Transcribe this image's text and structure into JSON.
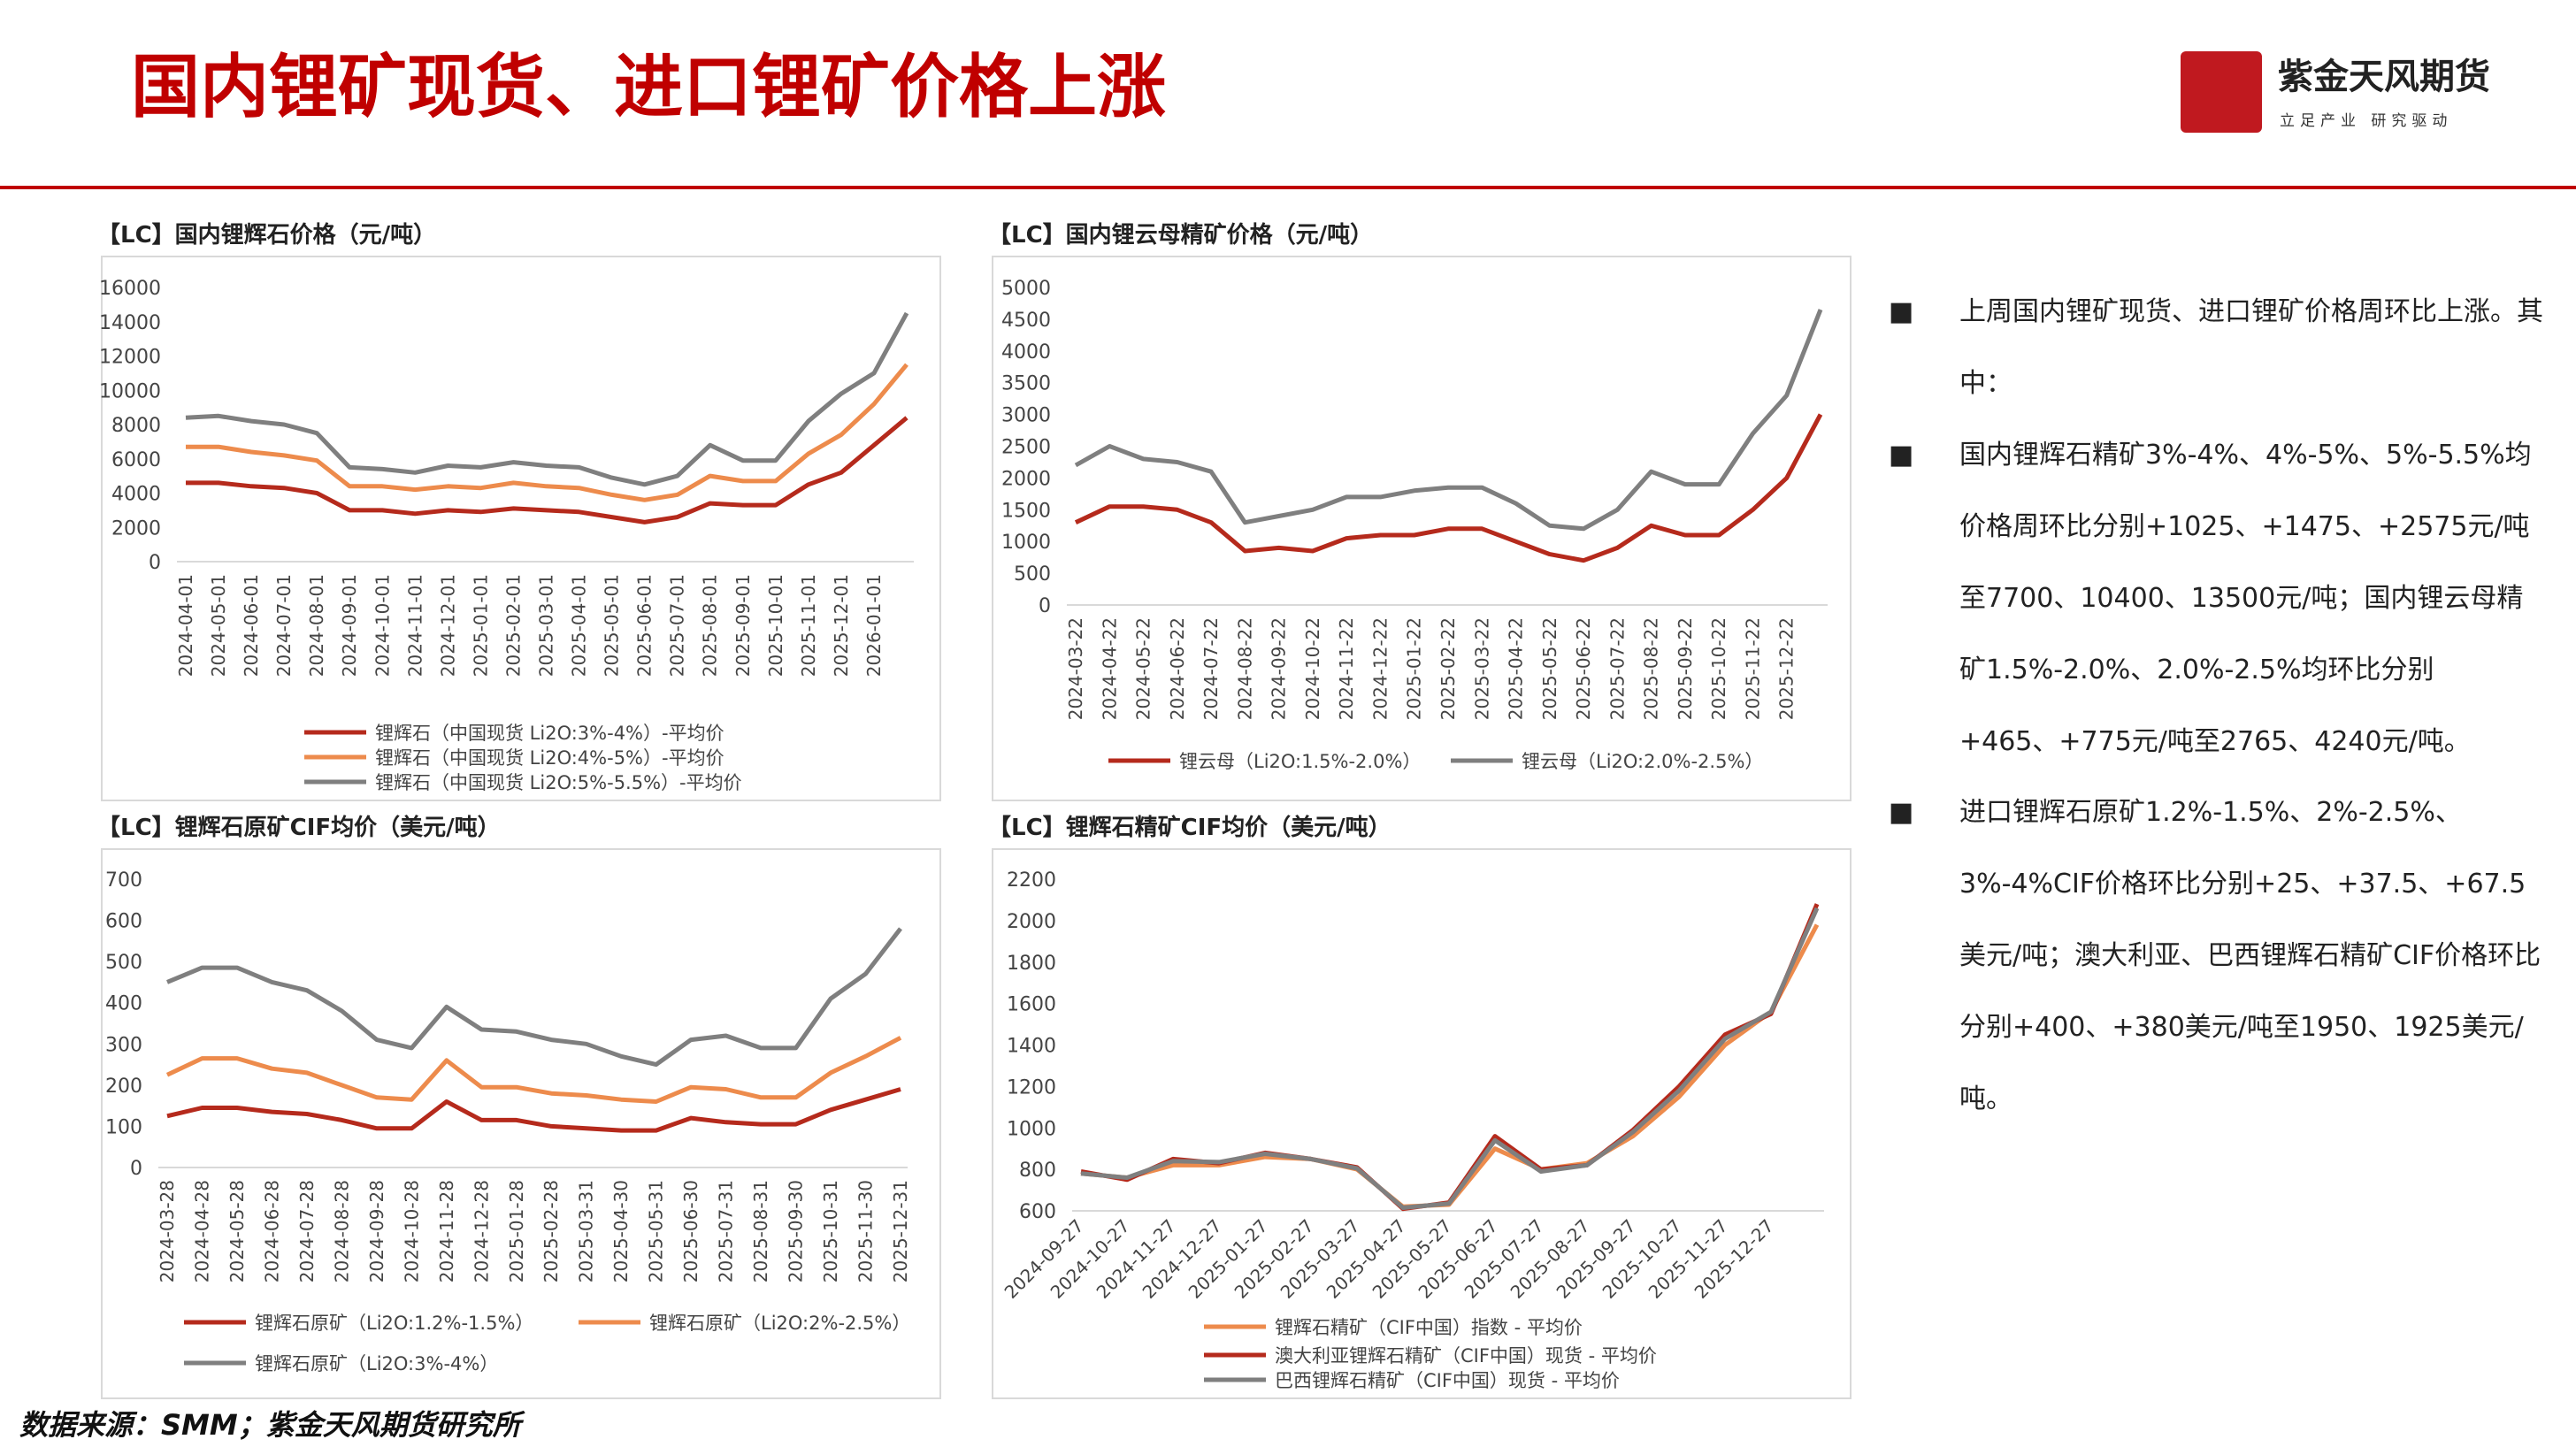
{
  "header": {
    "title": "国内锂矿现货、进口锂矿价格上涨",
    "brand": "紫金天风期货",
    "slogan": "立足产业 研究驱动"
  },
  "chart_data": [
    {
      "type": "line",
      "title": "【LC】国内锂辉石价格（元/吨）",
      "categories": [
        "2024-04-01",
        "2024-05-01",
        "2024-06-01",
        "2024-07-01",
        "2024-08-01",
        "2024-09-01",
        "2024-10-01",
        "2024-11-01",
        "2024-12-01",
        "2025-01-01",
        "2025-02-01",
        "2025-03-01",
        "2025-04-01",
        "2025-05-01",
        "2025-06-01",
        "2025-07-01",
        "2025-08-01",
        "2025-09-01",
        "2025-10-01",
        "2025-11-01",
        "2025-12-01",
        "2026-01-01",
        null
      ],
      "ylim": [
        0,
        16000
      ],
      "yticks": [
        0,
        2000,
        4000,
        6000,
        8000,
        10000,
        12000,
        14000,
        16000
      ],
      "grid": false,
      "series": [
        {
          "name": "锂辉石（中国现货 Li2O:3%-4%）-平均价",
          "color": "#b52a1c",
          "values": [
            4600,
            4600,
            4400,
            4300,
            4000,
            3000,
            3000,
            2800,
            3000,
            2900,
            3100,
            3000,
            2900,
            2600,
            2300,
            2600,
            3400,
            3300,
            3300,
            4500,
            5200,
            6800,
            8400
          ]
        },
        {
          "name": "锂辉石（中国现货 Li2O:4%-5%）-平均价",
          "color": "#ed8b4c",
          "values": [
            6700,
            6700,
            6400,
            6200,
            5900,
            4400,
            4400,
            4200,
            4400,
            4300,
            4600,
            4400,
            4300,
            3900,
            3600,
            3900,
            5000,
            4700,
            4700,
            6300,
            7400,
            9200,
            11500
          ]
        },
        {
          "name": "锂辉石（中国现货 Li2O:5%-5.5%）-平均价",
          "color": "#7f7f7f",
          "values": [
            8400,
            8500,
            8200,
            8000,
            7500,
            5500,
            5400,
            5200,
            5600,
            5500,
            5800,
            5600,
            5500,
            4900,
            4500,
            5000,
            6800,
            5900,
            5900,
            8200,
            9800,
            11000,
            14500
          ]
        }
      ]
    },
    {
      "type": "line",
      "title": "【LC】国内锂云母精矿价格（元/吨）",
      "categories": [
        "2024-03-22",
        "2024-04-22",
        "2024-05-22",
        "2024-06-22",
        "2024-07-22",
        "2024-08-22",
        "2024-09-22",
        "2024-10-22",
        "2024-11-22",
        "2024-12-22",
        "2025-01-22",
        "2025-02-22",
        "2025-03-22",
        "2025-04-22",
        "2025-05-22",
        "2025-06-22",
        "2025-07-22",
        "2025-08-22",
        "2025-09-22",
        "2025-10-22",
        "2025-11-22",
        "2025-12-22",
        null
      ],
      "ylim": [
        0,
        5000
      ],
      "yticks": [
        0,
        500,
        1000,
        1500,
        2000,
        2500,
        3000,
        3500,
        4000,
        4500,
        5000
      ],
      "grid": false,
      "series": [
        {
          "name": "锂云母（Li2O:1.5%-2.0%）",
          "color": "#b52a1c",
          "values": [
            1300,
            1550,
            1550,
            1500,
            1300,
            850,
            900,
            850,
            1050,
            1100,
            1100,
            1200,
            1200,
            1000,
            800,
            700,
            900,
            1250,
            1100,
            1100,
            1500,
            2000,
            3000
          ]
        },
        {
          "name": "锂云母（Li2O:2.0%-2.5%）",
          "color": "#7f7f7f",
          "values": [
            2200,
            2500,
            2300,
            2250,
            2100,
            1300,
            1400,
            1500,
            1700,
            1700,
            1800,
            1850,
            1850,
            1600,
            1250,
            1200,
            1500,
            2100,
            1900,
            1900,
            2700,
            3300,
            4650
          ]
        }
      ]
    },
    {
      "type": "line",
      "title": "【LC】锂辉石原矿CIF均价（美元/吨）",
      "categories": [
        "2024-03-28",
        "2024-04-28",
        "2024-05-28",
        "2024-06-28",
        "2024-07-28",
        "2024-08-28",
        "2024-09-28",
        "2024-10-28",
        "2024-11-28",
        "2024-12-28",
        "2025-01-28",
        "2025-02-28",
        "2025-03-31",
        "2025-04-30",
        "2025-05-31",
        "2025-06-30",
        "2025-07-31",
        "2025-08-31",
        "2025-09-30",
        "2025-10-31",
        "2025-11-30",
        "2025-12-31"
      ],
      "ylim": [
        0,
        700
      ],
      "yticks": [
        0,
        100,
        200,
        300,
        400,
        500,
        600,
        700
      ],
      "grid": false,
      "series": [
        {
          "name": "锂辉石原矿（Li2O:1.2%-1.5%）",
          "color": "#b52a1c",
          "values": [
            125,
            145,
            145,
            135,
            130,
            115,
            95,
            95,
            160,
            115,
            115,
            100,
            95,
            90,
            90,
            120,
            110,
            105,
            105,
            140,
            165,
            190
          ]
        },
        {
          "name": "锂辉石原矿（Li2O:2%-2.5%）",
          "color": "#ed8b4c",
          "values": [
            225,
            265,
            265,
            240,
            230,
            200,
            170,
            165,
            260,
            195,
            195,
            180,
            175,
            165,
            160,
            195,
            190,
            170,
            170,
            230,
            270,
            315
          ]
        },
        {
          "name": "锂辉石原矿（Li2O:3%-4%）",
          "color": "#7f7f7f",
          "values": [
            450,
            485,
            485,
            450,
            430,
            380,
            310,
            290,
            390,
            335,
            330,
            310,
            300,
            270,
            250,
            310,
            320,
            290,
            290,
            410,
            470,
            580
          ]
        }
      ]
    },
    {
      "type": "line",
      "title": "【LC】锂辉石精矿CIF均价（美元/吨）",
      "categories": [
        "2024-09-27",
        "2024-10-27",
        "2024-11-27",
        "2024-12-27",
        "2025-01-27",
        "2025-02-27",
        "2025-03-27",
        "2025-04-27",
        "2025-05-27",
        "2025-06-27",
        "2025-07-27",
        "2025-08-27",
        "2025-09-27",
        "2025-10-27",
        "2025-11-27",
        "2025-12-27",
        null
      ],
      "ylim": [
        600,
        2200
      ],
      "yticks": [
        600,
        800,
        1000,
        1200,
        1400,
        1600,
        1800,
        2000,
        2200
      ],
      "grid": false,
      "series": [
        {
          "name": "锂辉石精矿（CIF中国）指数 - 平均价",
          "color": "#ed8b4c",
          "values": [
            780,
            760,
            820,
            820,
            860,
            850,
            800,
            620,
            630,
            900,
            800,
            830,
            960,
            1150,
            1400,
            1560,
            1980
          ]
        },
        {
          "name": "澳大利亚锂辉石精矿（CIF中国）现货 - 平均价",
          "color": "#b52a1c",
          "values": [
            790,
            750,
            850,
            830,
            880,
            850,
            810,
            610,
            640,
            960,
            800,
            820,
            990,
            1200,
            1450,
            1550,
            2080
          ]
        },
        {
          "name": "巴西锂辉石精矿（CIF中国）现货 - 平均价",
          "color": "#7f7f7f",
          "values": [
            780,
            760,
            840,
            835,
            875,
            850,
            805,
            615,
            635,
            940,
            790,
            820,
            980,
            1180,
            1430,
            1560,
            2060
          ]
        }
      ]
    }
  ],
  "bullets": [
    "上周国内锂矿现货、进口锂矿价格周环比上涨。其中：",
    "国内锂辉石精矿3%-4%、4%-5%、5%-5.5%均价格周环比分别+1025、+1475、+2575元/吨至7700、10400、13500元/吨；国内锂云母精矿1.5%-2.0%、2.0%-2.5%均环比分别+465、+775元/吨至2765、4240元/吨。",
    "进口锂辉石原矿1.2%-1.5%、2%-2.5%、3%-4%CIF价格环比分别+25、+37.5、+67.5美元/吨；澳大利亚、巴西锂辉石精矿CIF价格环比分别+400、+380美元/吨至1950、1925美元/吨。"
  ],
  "bullet_marker": "■",
  "source": "数据来源：SMM；紫金天风期货研究所"
}
